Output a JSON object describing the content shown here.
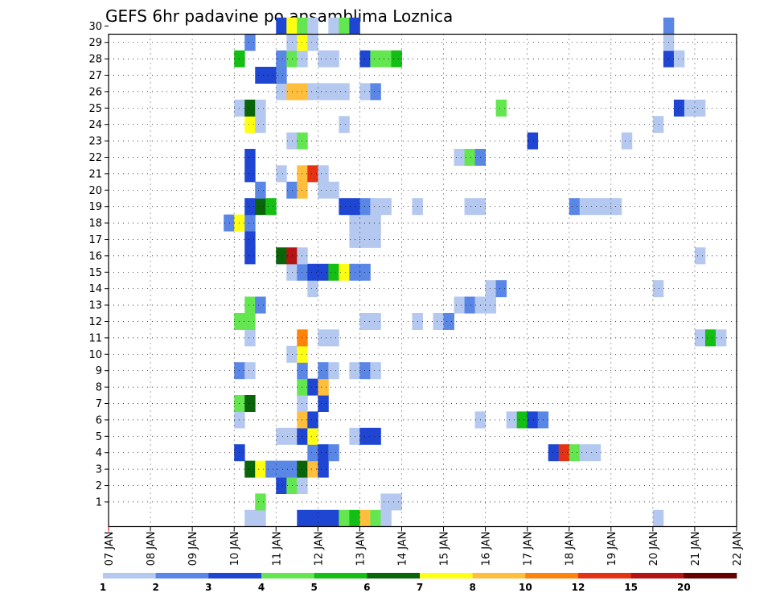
{
  "chart_data": {
    "type": "heatmap",
    "title": "GEFS 6hr padavine po ansamblima Loznica",
    "xlabel": "",
    "ylabel": "",
    "x_tick_labels": [
      "07 JAN",
      "08 JAN",
      "09 JAN",
      "10 JAN",
      "11 JAN",
      "12 JAN",
      "13 JAN",
      "14 JAN",
      "15 JAN",
      "16 JAN",
      "17 JAN",
      "18 JAN",
      "19 JAN",
      "20 JAN",
      "21 JAN",
      "22 JAN"
    ],
    "y_tick_labels": [
      "1",
      "2",
      "3",
      "4",
      "5",
      "6",
      "7",
      "8",
      "9",
      "10",
      "11",
      "12",
      "13",
      "14",
      "15",
      "16",
      "17",
      "18",
      "19",
      "20",
      "21",
      "22",
      "23",
      "24",
      "25",
      "26",
      "27",
      "28",
      "29",
      "30"
    ],
    "x_range": [
      "07 JAN 00Z",
      "22 JAN 00Z"
    ],
    "y_range": [
      0,
      30
    ],
    "grid": true,
    "cell_hours": 6,
    "units_note": "x = member index (0 = control, 1-30 ensemble members); t = 6-hourly step since 07 JAN 00Z; v = precipitation (mm/6h)",
    "color_levels": [
      1,
      2,
      3,
      4,
      5,
      6,
      7,
      8,
      10,
      12,
      15,
      20
    ],
    "level_labels": [
      "1",
      "2",
      "3",
      "4",
      "5",
      "6",
      "7",
      "8",
      "10",
      "12",
      "15",
      "20"
    ],
    "colors": [
      "#b4c8f0",
      "#5a87e6",
      "#1e46d2",
      "#64e650",
      "#14be14",
      "#0a640a",
      "#ffff14",
      "#ffbe3c",
      "#ff820a",
      "#e63214",
      "#b41414",
      "#640000"
    ],
    "cells": [
      {
        "m": 0,
        "t": 13,
        "v": 1.5
      },
      {
        "m": 0,
        "t": 14,
        "v": 1.5
      },
      {
        "m": 0,
        "t": 18,
        "v": 3.5
      },
      {
        "m": 0,
        "t": 19,
        "v": 3.5
      },
      {
        "m": 0,
        "t": 20,
        "v": 3.5
      },
      {
        "m": 0,
        "t": 21,
        "v": 3.5
      },
      {
        "m": 0,
        "t": 22,
        "v": 4.5
      },
      {
        "m": 0,
        "t": 23,
        "v": 5.5
      },
      {
        "m": 0,
        "t": 24,
        "v": 9
      },
      {
        "m": 0,
        "t": 25,
        "v": 4.5
      },
      {
        "m": 0,
        "t": 26,
        "v": 1.5
      },
      {
        "m": 0,
        "t": 52,
        "v": 1.5
      },
      {
        "m": 1,
        "t": 26,
        "v": 1.5
      },
      {
        "m": 1,
        "t": 27,
        "v": 1.5
      },
      {
        "m": 1,
        "t": 14,
        "v": 4.5
      },
      {
        "m": 2,
        "t": 16,
        "v": 3.5
      },
      {
        "m": 2,
        "t": 17,
        "v": 4.5
      },
      {
        "m": 2,
        "t": 18,
        "v": 1.5
      },
      {
        "m": 3,
        "t": 13,
        "v": 6.5
      },
      {
        "m": 3,
        "t": 14,
        "v": 7.5
      },
      {
        "m": 3,
        "t": 15,
        "v": 2.5
      },
      {
        "m": 3,
        "t": 16,
        "v": 2.5
      },
      {
        "m": 3,
        "t": 17,
        "v": 2.5
      },
      {
        "m": 3,
        "t": 18,
        "v": 6.5
      },
      {
        "m": 3,
        "t": 19,
        "v": 9
      },
      {
        "m": 3,
        "t": 20,
        "v": 3.5
      },
      {
        "m": 4,
        "t": 12,
        "v": 3.5
      },
      {
        "m": 4,
        "t": 19,
        "v": 2.5
      },
      {
        "m": 4,
        "t": 20,
        "v": 3.5
      },
      {
        "m": 4,
        "t": 21,
        "v": 2.5
      },
      {
        "m": 4,
        "t": 42,
        "v": 3.5
      },
      {
        "m": 4,
        "t": 43,
        "v": 13.5
      },
      {
        "m": 4,
        "t": 44,
        "v": 4.5
      },
      {
        "m": 4,
        "t": 45,
        "v": 1.5
      },
      {
        "m": 4,
        "t": 46,
        "v": 1.5
      },
      {
        "m": 5,
        "t": 16,
        "v": 1.5
      },
      {
        "m": 5,
        "t": 17,
        "v": 1.5
      },
      {
        "m": 5,
        "t": 18,
        "v": 3.5
      },
      {
        "m": 5,
        "t": 19,
        "v": 7.5
      },
      {
        "m": 5,
        "t": 23,
        "v": 1.5
      },
      {
        "m": 5,
        "t": 24,
        "v": 3.5
      },
      {
        "m": 5,
        "t": 25,
        "v": 3.5
      },
      {
        "m": 6,
        "t": 12,
        "v": 1.5
      },
      {
        "m": 6,
        "t": 18,
        "v": 9
      },
      {
        "m": 6,
        "t": 19,
        "v": 3.5
      },
      {
        "m": 6,
        "t": 35,
        "v": 1.5
      },
      {
        "m": 6,
        "t": 38,
        "v": 1.5
      },
      {
        "m": 6,
        "t": 39,
        "v": 5.5
      },
      {
        "m": 6,
        "t": 40,
        "v": 3.5
      },
      {
        "m": 6,
        "t": 41,
        "v": 2.5
      },
      {
        "m": 7,
        "t": 12,
        "v": 4.5
      },
      {
        "m": 7,
        "t": 13,
        "v": 6.5
      },
      {
        "m": 7,
        "t": 18,
        "v": 1.5
      },
      {
        "m": 7,
        "t": 20,
        "v": 3.5
      },
      {
        "m": 8,
        "t": 18,
        "v": 4.5
      },
      {
        "m": 8,
        "t": 19,
        "v": 3.5
      },
      {
        "m": 8,
        "t": 20,
        "v": 9
      },
      {
        "m": 9,
        "t": 12,
        "v": 2.5
      },
      {
        "m": 9,
        "t": 13,
        "v": 1.5
      },
      {
        "m": 9,
        "t": 18,
        "v": 2.5
      },
      {
        "m": 9,
        "t": 20,
        "v": 2.5
      },
      {
        "m": 9,
        "t": 21,
        "v": 1.5
      },
      {
        "m": 9,
        "t": 23,
        "v": 1.5
      },
      {
        "m": 9,
        "t": 24,
        "v": 2.5
      },
      {
        "m": 9,
        "t": 25,
        "v": 1.5
      },
      {
        "m": 10,
        "t": 17,
        "v": 1.5
      },
      {
        "m": 10,
        "t": 18,
        "v": 7.5
      },
      {
        "m": 11,
        "t": 13,
        "v": 1.5
      },
      {
        "m": 11,
        "t": 18,
        "v": 11
      },
      {
        "m": 11,
        "t": 20,
        "v": 1.5
      },
      {
        "m": 11,
        "t": 21,
        "v": 1.5
      },
      {
        "m": 11,
        "t": 56,
        "v": 1.5
      },
      {
        "m": 11,
        "t": 57,
        "v": 5.5
      },
      {
        "m": 11,
        "t": 58,
        "v": 1.5
      },
      {
        "m": 12,
        "t": 12,
        "v": 4.5
      },
      {
        "m": 12,
        "t": 13,
        "v": 4.5
      },
      {
        "m": 12,
        "t": 24,
        "v": 1.5
      },
      {
        "m": 12,
        "t": 25,
        "v": 1.5
      },
      {
        "m": 12,
        "t": 29,
        "v": 1.5
      },
      {
        "m": 12,
        "t": 31,
        "v": 1.5
      },
      {
        "m": 12,
        "t": 32,
        "v": 2.5
      },
      {
        "m": 13,
        "t": 13,
        "v": 4.5
      },
      {
        "m": 13,
        "t": 14,
        "v": 2.5
      },
      {
        "m": 13,
        "t": 33,
        "v": 1.5
      },
      {
        "m": 13,
        "t": 34,
        "v": 2.5
      },
      {
        "m": 13,
        "t": 35,
        "v": 1.5
      },
      {
        "m": 13,
        "t": 36,
        "v": 1.5
      },
      {
        "m": 14,
        "t": 19,
        "v": 1.5
      },
      {
        "m": 14,
        "t": 36,
        "v": 1.5
      },
      {
        "m": 14,
        "t": 37,
        "v": 2.5
      },
      {
        "m": 14,
        "t": 52,
        "v": 1.5
      },
      {
        "m": 15,
        "t": 17,
        "v": 1.5
      },
      {
        "m": 15,
        "t": 18,
        "v": 2.5
      },
      {
        "m": 15,
        "t": 19,
        "v": 3.5
      },
      {
        "m": 15,
        "t": 20,
        "v": 3.5
      },
      {
        "m": 15,
        "t": 21,
        "v": 5.5
      },
      {
        "m": 15,
        "t": 22,
        "v": 7.5
      },
      {
        "m": 15,
        "t": 23,
        "v": 2.5
      },
      {
        "m": 15,
        "t": 24,
        "v": 2.5
      },
      {
        "m": 16,
        "t": 13,
        "v": 3.5
      },
      {
        "m": 16,
        "t": 16,
        "v": 6.5
      },
      {
        "m": 16,
        "t": 17,
        "v": 17.5
      },
      {
        "m": 16,
        "t": 18,
        "v": 1.5
      },
      {
        "m": 16,
        "t": 56,
        "v": 1.5
      },
      {
        "m": 17,
        "t": 13,
        "v": 3.5
      },
      {
        "m": 17,
        "t": 23,
        "v": 1.5
      },
      {
        "m": 17,
        "t": 24,
        "v": 1.5
      },
      {
        "m": 17,
        "t": 25,
        "v": 1.5
      },
      {
        "m": 18,
        "t": 11,
        "v": 2.5
      },
      {
        "m": 18,
        "t": 12,
        "v": 7.5
      },
      {
        "m": 18,
        "t": 13,
        "v": 2.5
      },
      {
        "m": 18,
        "t": 23,
        "v": 1.5
      },
      {
        "m": 18,
        "t": 24,
        "v": 1.5
      },
      {
        "m": 18,
        "t": 25,
        "v": 1.5
      },
      {
        "m": 19,
        "t": 13,
        "v": 3.5
      },
      {
        "m": 19,
        "t": 14,
        "v": 6.5
      },
      {
        "m": 19,
        "t": 15,
        "v": 5.5
      },
      {
        "m": 19,
        "t": 22,
        "v": 3.5
      },
      {
        "m": 19,
        "t": 23,
        "v": 3.5
      },
      {
        "m": 19,
        "t": 24,
        "v": 2.5
      },
      {
        "m": 19,
        "t": 25,
        "v": 1.5
      },
      {
        "m": 19,
        "t": 26,
        "v": 1.5
      },
      {
        "m": 19,
        "t": 29,
        "v": 1.5
      },
      {
        "m": 19,
        "t": 34,
        "v": 1.5
      },
      {
        "m": 19,
        "t": 35,
        "v": 1.5
      },
      {
        "m": 19,
        "t": 44,
        "v": 2.5
      },
      {
        "m": 19,
        "t": 45,
        "v": 1.5
      },
      {
        "m": 19,
        "t": 46,
        "v": 1.5
      },
      {
        "m": 19,
        "t": 47,
        "v": 1.5
      },
      {
        "m": 19,
        "t": 48,
        "v": 1.5
      },
      {
        "m": 20,
        "t": 14,
        "v": 2.5
      },
      {
        "m": 20,
        "t": 17,
        "v": 2.5
      },
      {
        "m": 20,
        "t": 18,
        "v": 9
      },
      {
        "m": 20,
        "t": 20,
        "v": 1.5
      },
      {
        "m": 20,
        "t": 21,
        "v": 1.5
      },
      {
        "m": 21,
        "t": 13,
        "v": 3.5
      },
      {
        "m": 21,
        "t": 16,
        "v": 1.5
      },
      {
        "m": 21,
        "t": 18,
        "v": 9
      },
      {
        "m": 21,
        "t": 19,
        "v": 13.5
      },
      {
        "m": 21,
        "t": 20,
        "v": 1.5
      },
      {
        "m": 22,
        "t": 13,
        "v": 3.5
      },
      {
        "m": 22,
        "t": 33,
        "v": 1.5
      },
      {
        "m": 22,
        "t": 34,
        "v": 4.5
      },
      {
        "m": 22,
        "t": 35,
        "v": 2.5
      },
      {
        "m": 23,
        "t": 17,
        "v": 1.5
      },
      {
        "m": 23,
        "t": 18,
        "v": 4.5
      },
      {
        "m": 23,
        "t": 40,
        "v": 3.5
      },
      {
        "m": 23,
        "t": 49,
        "v": 1.5
      },
      {
        "m": 24,
        "t": 13,
        "v": 7.5
      },
      {
        "m": 24,
        "t": 14,
        "v": 1.5
      },
      {
        "m": 24,
        "t": 22,
        "v": 1.5
      },
      {
        "m": 24,
        "t": 52,
        "v": 1.5
      },
      {
        "m": 25,
        "t": 12,
        "v": 1.5
      },
      {
        "m": 25,
        "t": 13,
        "v": 6.5
      },
      {
        "m": 25,
        "t": 14,
        "v": 1.5
      },
      {
        "m": 25,
        "t": 37,
        "v": 4.5
      },
      {
        "m": 25,
        "t": 54,
        "v": 3.5
      },
      {
        "m": 25,
        "t": 55,
        "v": 1.5
      },
      {
        "m": 25,
        "t": 56,
        "v": 1.5
      },
      {
        "m": 26,
        "t": 16,
        "v": 1.5
      },
      {
        "m": 26,
        "t": 17,
        "v": 9
      },
      {
        "m": 26,
        "t": 18,
        "v": 9
      },
      {
        "m": 26,
        "t": 19,
        "v": 1.5
      },
      {
        "m": 26,
        "t": 20,
        "v": 1.5
      },
      {
        "m": 26,
        "t": 21,
        "v": 1.5
      },
      {
        "m": 26,
        "t": 22,
        "v": 1.5
      },
      {
        "m": 26,
        "t": 24,
        "v": 1.5
      },
      {
        "m": 26,
        "t": 25,
        "v": 2.5
      },
      {
        "m": 27,
        "t": 14,
        "v": 3.5
      },
      {
        "m": 27,
        "t": 15,
        "v": 3.5
      },
      {
        "m": 27,
        "t": 16,
        "v": 2.5
      },
      {
        "m": 28,
        "t": 12,
        "v": 5.5
      },
      {
        "m": 28,
        "t": 16,
        "v": 2.5
      },
      {
        "m": 28,
        "t": 17,
        "v": 4.5
      },
      {
        "m": 28,
        "t": 18,
        "v": 1.5
      },
      {
        "m": 28,
        "t": 20,
        "v": 1.5
      },
      {
        "m": 28,
        "t": 21,
        "v": 1.5
      },
      {
        "m": 28,
        "t": 24,
        "v": 3.5
      },
      {
        "m": 28,
        "t": 25,
        "v": 4.5
      },
      {
        "m": 28,
        "t": 26,
        "v": 4.5
      },
      {
        "m": 28,
        "t": 27,
        "v": 5.5
      },
      {
        "m": 28,
        "t": 53,
        "v": 3.5
      },
      {
        "m": 28,
        "t": 54,
        "v": 1.5
      },
      {
        "m": 29,
        "t": 13,
        "v": 2.5
      },
      {
        "m": 29,
        "t": 17,
        "v": 1.5
      },
      {
        "m": 29,
        "t": 18,
        "v": 7.5
      },
      {
        "m": 29,
        "t": 19,
        "v": 1.5
      },
      {
        "m": 29,
        "t": 53,
        "v": 1.5
      },
      {
        "m": 30,
        "t": 16,
        "v": 3.5
      },
      {
        "m": 30,
        "t": 17,
        "v": 7.5
      },
      {
        "m": 30,
        "t": 18,
        "v": 4.5
      },
      {
        "m": 30,
        "t": 19,
        "v": 1.5
      },
      {
        "m": 30,
        "t": 21,
        "v": 1.5
      },
      {
        "m": 30,
        "t": 22,
        "v": 4.5
      },
      {
        "m": 30,
        "t": 23,
        "v": 3.5
      },
      {
        "m": 30,
        "t": 53,
        "v": 2.5
      }
    ]
  }
}
